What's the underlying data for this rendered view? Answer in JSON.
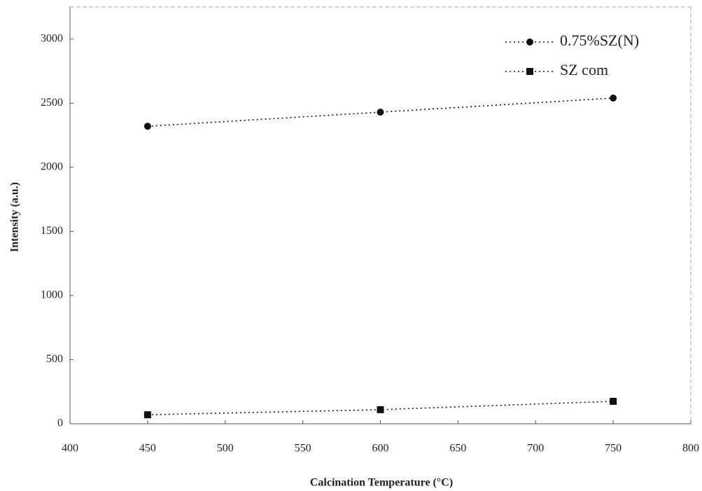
{
  "chart_data": {
    "type": "line",
    "x_label": "Calcination Temperature (°C)",
    "y_label": "Intensity (a.u.)",
    "x": [
      450,
      600,
      750
    ],
    "series": [
      {
        "name": "0.75%SZ(N)",
        "color": "#111111",
        "marker": "circle",
        "linestyle": "dotted",
        "values": [
          2320,
          2430,
          2540
        ]
      },
      {
        "name": "SZ com",
        "color": "#111111",
        "marker": "square",
        "linestyle": "dotted",
        "values": [
          70,
          110,
          175
        ]
      }
    ],
    "xlim": [
      400,
      800
    ],
    "xticks": [
      400,
      450,
      500,
      550,
      600,
      650,
      700,
      750,
      800
    ],
    "ylim": [
      0,
      3250
    ],
    "yticks": [
      0,
      500,
      1000,
      1500,
      2000,
      2500,
      3000
    ],
    "grid": false,
    "legend": "upper right"
  }
}
